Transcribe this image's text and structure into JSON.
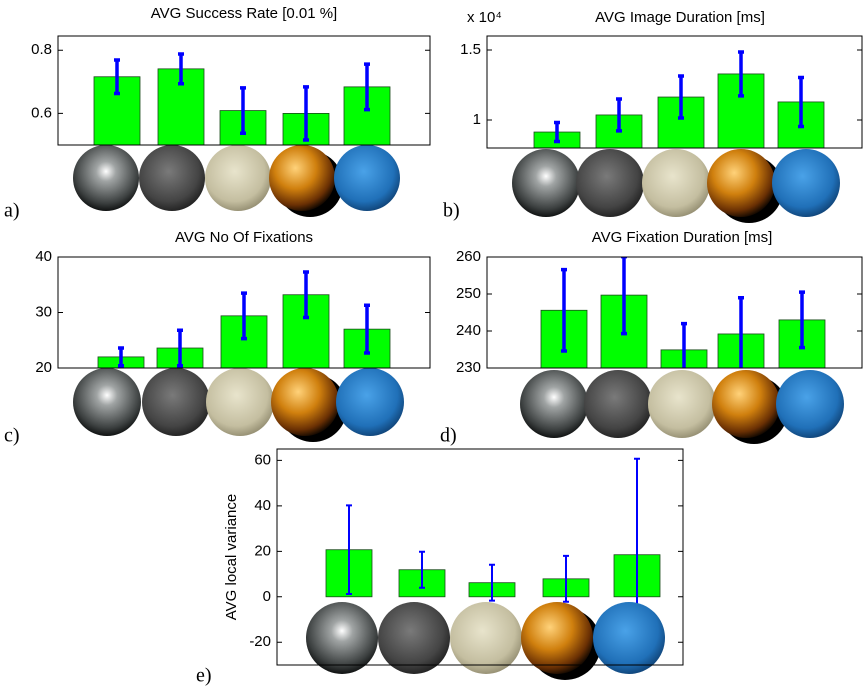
{
  "chart_data": [
    {
      "type": "bar",
      "title": "AVG Success Rate [0.01 %]",
      "panel_label": "a)",
      "categories": [
        null,
        null,
        null,
        null,
        null
      ],
      "values": [
        0.716,
        0.741,
        0.609,
        0.6,
        0.684
      ],
      "errors": [
        0.053,
        0.047,
        0.072,
        0.084,
        0.072
      ],
      "color": "#00ff00",
      "error_color": "#0000ff",
      "ylim": [
        0.5,
        0.845
      ],
      "yticks": [
        0.6,
        0.8
      ],
      "grid": false
    },
    {
      "type": "bar",
      "title": "AVG Image Duration [ms]",
      "panel_label": "b)",
      "axis_multiplier": "x 10⁴",
      "categories": [
        null,
        null,
        null,
        null,
        null
      ],
      "values": [
        0.914,
        1.036,
        1.164,
        1.329,
        1.129
      ],
      "errors": [
        0.068,
        0.114,
        0.15,
        0.157,
        0.175
      ],
      "color": "#00ff00",
      "error_color": "#0000ff",
      "ylim": [
        0.8,
        1.6
      ],
      "yticks": [
        1,
        1.5
      ],
      "grid": false
    },
    {
      "type": "bar",
      "title": "AVG No Of Fixations",
      "panel_label": "c)",
      "categories": [
        null,
        null,
        null,
        null,
        null
      ],
      "values": [
        22.0,
        23.6,
        29.4,
        33.2,
        27.0
      ],
      "errors": [
        1.6,
        3.2,
        4.1,
        4.1,
        4.3
      ],
      "color": "#00ff00",
      "error_color": "#0000ff",
      "ylim": [
        20,
        40
      ],
      "yticks": [
        20,
        30,
        40
      ],
      "grid": false
    },
    {
      "type": "bar",
      "title": "AVG Fixation Duration [ms]",
      "panel_label": "d)",
      "categories": [
        null,
        null,
        null,
        null,
        null
      ],
      "values": [
        245.6,
        249.7,
        234.9,
        239.2,
        243.0
      ],
      "errors": [
        11,
        10.4,
        7.1,
        9.8,
        7.5
      ],
      "color": "#00ff00",
      "error_color": "#0000ff",
      "ylim": [
        230,
        260
      ],
      "yticks": [
        230,
        240,
        250,
        260
      ],
      "grid": false
    },
    {
      "type": "bar",
      "ylabel": "AVG local variance",
      "panel_label": "e)",
      "categories": [
        null,
        null,
        null,
        null,
        null
      ],
      "values": [
        20.7,
        11.9,
        6.2,
        7.9,
        18.5
      ],
      "errors": [
        19.5,
        7.9,
        7.9,
        10.1,
        42.2
      ],
      "color": "#00ff00",
      "error_color": "#0000ff",
      "ylim": [
        -30,
        65
      ],
      "yticks": [
        -20,
        0,
        20,
        40,
        60
      ],
      "grid": false
    }
  ]
}
